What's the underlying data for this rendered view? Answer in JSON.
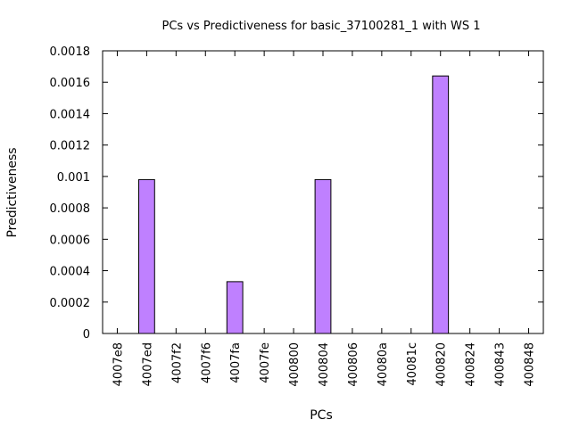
{
  "chart_data": {
    "type": "bar",
    "title": "PCs vs Predictiveness for basic_37100281_1 with WS 1",
    "xlabel": "PCs",
    "ylabel": "Predictiveness",
    "ylim": [
      0,
      0.0018
    ],
    "yticks": [
      "0",
      "0.0002",
      "0.0004",
      "0.0006",
      "0.0008",
      "0.001",
      "0.0012",
      "0.0014",
      "0.0016",
      "0.0018"
    ],
    "categories": [
      "4007e8",
      "4007ed",
      "4007f2",
      "4007f6",
      "4007fa",
      "4007fe",
      "400800",
      "400804",
      "400806",
      "40080a",
      "40081c",
      "400820",
      "400824",
      "400843",
      "400848"
    ],
    "values": [
      0,
      0.00098,
      0,
      0,
      0.00033,
      0,
      0,
      0.00098,
      0,
      0,
      0,
      0.00164,
      0,
      0,
      0
    ],
    "bar_color": "#bf80ff",
    "grid": false,
    "legend": "none"
  }
}
